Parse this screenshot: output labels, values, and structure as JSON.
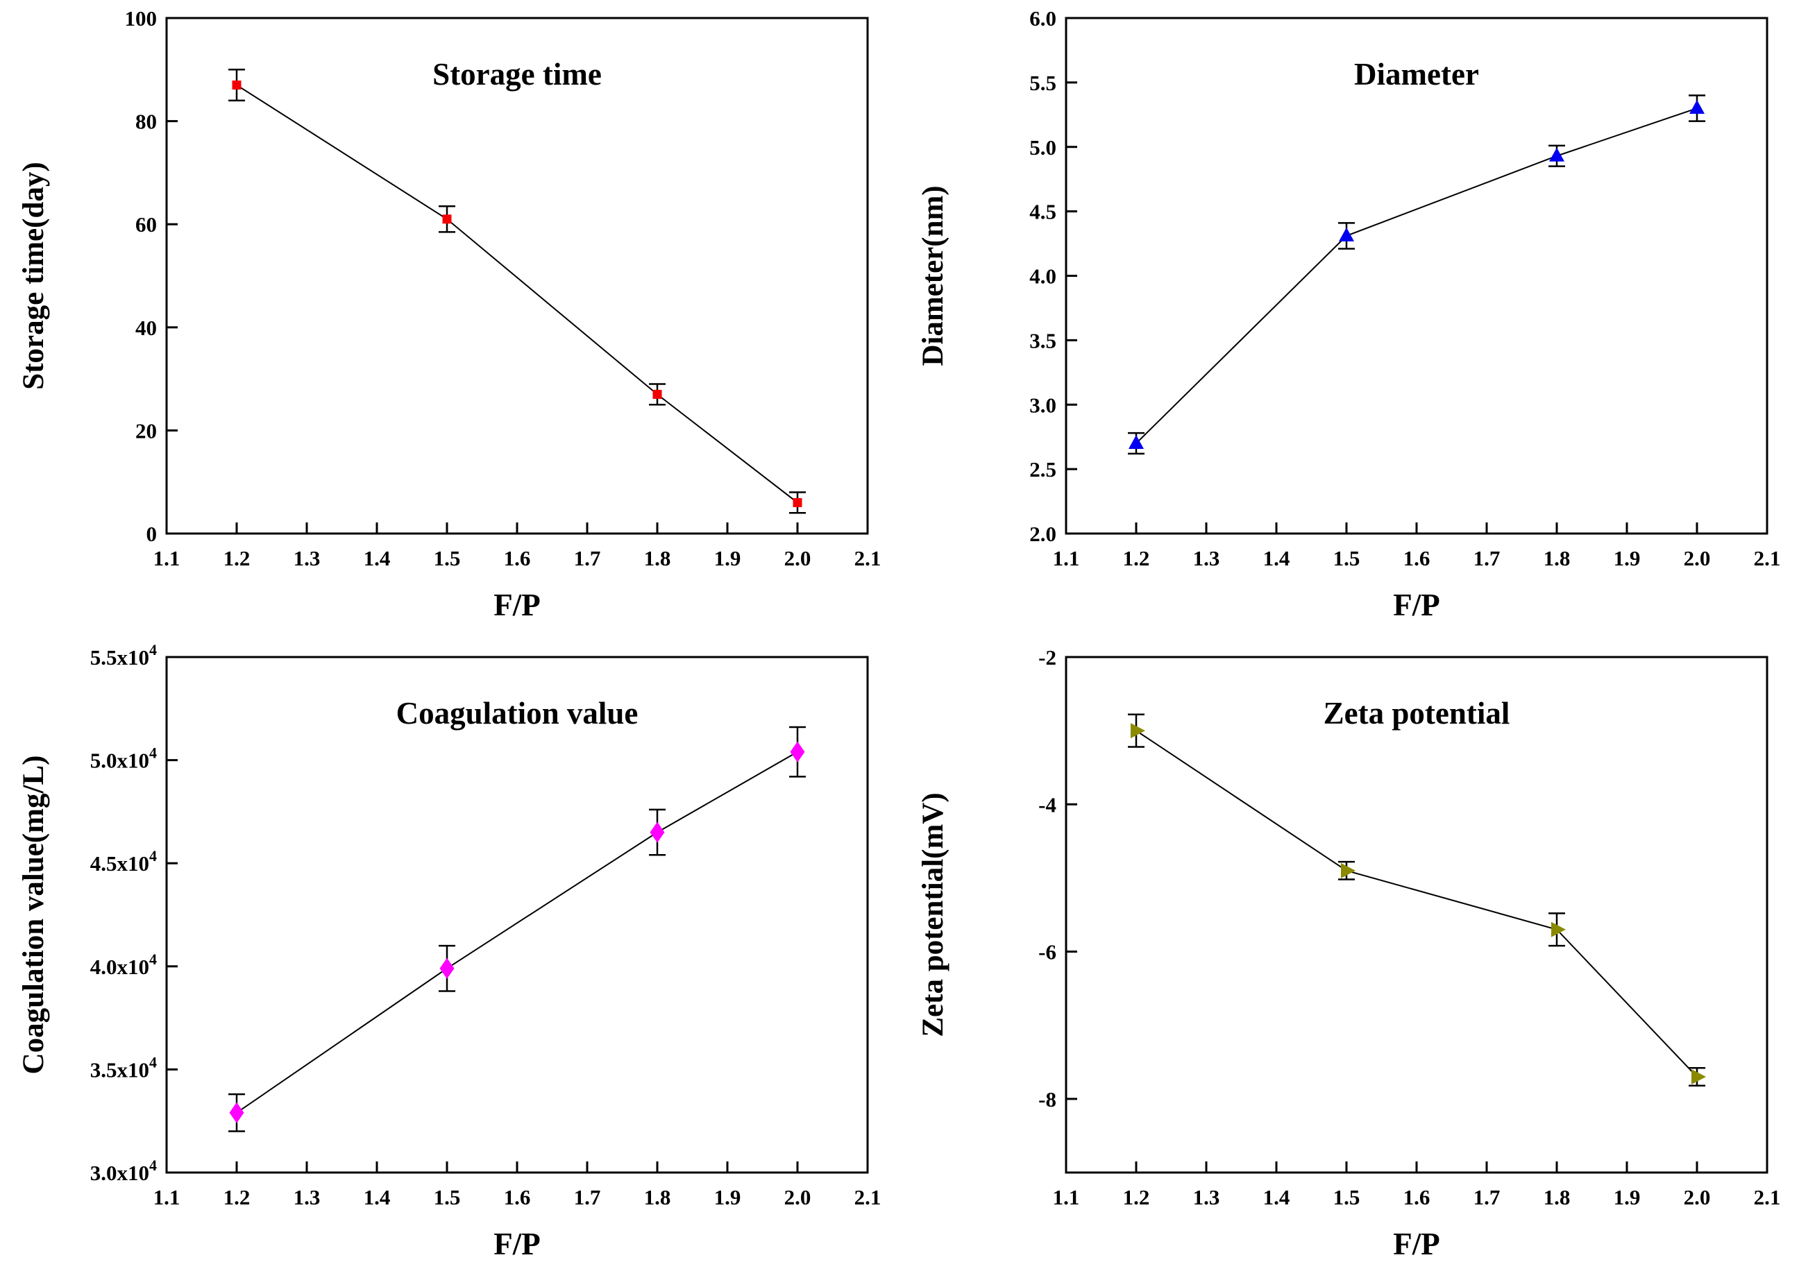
{
  "page": {
    "background": "#ffffff",
    "layout": "2x2-grid"
  },
  "chart_data": [
    {
      "id": "storage-time",
      "type": "line",
      "title": "Storage time",
      "xlabel": "F/P",
      "ylabel": "Storage time(day)",
      "xlim": [
        1.1,
        2.1
      ],
      "xticks": [
        1.1,
        1.2,
        1.3,
        1.4,
        1.5,
        1.6,
        1.7,
        1.8,
        1.9,
        2.0,
        2.1
      ],
      "xtick_labels": [
        "1.1",
        "1.2",
        "1.3",
        "1.4",
        "1.5",
        "1.6",
        "1.7",
        "1.8",
        "1.9",
        "2.0",
        "2.1"
      ],
      "ylim": [
        0,
        100
      ],
      "yticks": [
        0,
        20,
        40,
        60,
        80,
        100
      ],
      "ytick_labels": [
        "0",
        "20",
        "40",
        "60",
        "80",
        "100"
      ],
      "grid": false,
      "legend": "none",
      "marker": "square",
      "marker_color": "#f40000",
      "line_color": "#000000",
      "x": [
        1.2,
        1.5,
        1.8,
        2.0
      ],
      "y": [
        87,
        61,
        27,
        6
      ],
      "yerr": [
        3,
        2.5,
        2,
        2
      ]
    },
    {
      "id": "diameter",
      "type": "line",
      "title": "Diameter",
      "xlabel": "F/P",
      "ylabel": "Diameter(nm)",
      "xlim": [
        1.1,
        2.1
      ],
      "xticks": [
        1.1,
        1.2,
        1.3,
        1.4,
        1.5,
        1.6,
        1.7,
        1.8,
        1.9,
        2.0,
        2.1
      ],
      "xtick_labels": [
        "1.1",
        "1.2",
        "1.3",
        "1.4",
        "1.5",
        "1.6",
        "1.7",
        "1.8",
        "1.9",
        "2.0",
        "2.1"
      ],
      "ylim": [
        2.0,
        6.0
      ],
      "yticks": [
        2.0,
        2.5,
        3.0,
        3.5,
        4.0,
        4.5,
        5.0,
        5.5,
        6.0
      ],
      "ytick_labels": [
        "2.0",
        "2.5",
        "3.0",
        "3.5",
        "4.0",
        "4.5",
        "5.0",
        "5.5",
        "6.0"
      ],
      "grid": false,
      "legend": "none",
      "marker": "triangle-up",
      "marker_color": "#0000f0",
      "line_color": "#000000",
      "x": [
        1.2,
        1.5,
        1.8,
        2.0
      ],
      "y": [
        2.7,
        4.31,
        4.93,
        5.3
      ],
      "yerr": [
        0.08,
        0.1,
        0.08,
        0.1
      ]
    },
    {
      "id": "coagulation-value",
      "type": "line",
      "title": "Coagulation value",
      "xlabel": "F/P",
      "ylabel": "Coagulation value(mg/L)",
      "xlim": [
        1.1,
        2.1
      ],
      "xticks": [
        1.1,
        1.2,
        1.3,
        1.4,
        1.5,
        1.6,
        1.7,
        1.8,
        1.9,
        2.0,
        2.1
      ],
      "xtick_labels": [
        "1.1",
        "1.2",
        "1.3",
        "1.4",
        "1.5",
        "1.6",
        "1.7",
        "1.8",
        "1.9",
        "2.0",
        "2.1"
      ],
      "ylim": [
        30000,
        55000
      ],
      "yticks": [
        30000,
        35000,
        40000,
        45000,
        50000,
        55000
      ],
      "ytick_labels": [
        "3.0x10^4",
        "3.5x10^4",
        "4.0x10^4",
        "4.5x10^4",
        "5.0x10^4",
        "5.5x10^4"
      ],
      "grid": false,
      "legend": "none",
      "marker": "diamond",
      "marker_color": "#ff00ff",
      "line_color": "#000000",
      "x": [
        1.2,
        1.5,
        1.8,
        2.0
      ],
      "y": [
        32900,
        39900,
        46500,
        50400
      ],
      "yerr": [
        900,
        1100,
        1100,
        1200
      ]
    },
    {
      "id": "zeta-potential",
      "type": "line",
      "title": "Zeta potential",
      "xlabel": "F/P",
      "ylabel": "Zeta potential(mV)",
      "xlim": [
        1.1,
        2.1
      ],
      "xticks": [
        1.1,
        1.2,
        1.3,
        1.4,
        1.5,
        1.6,
        1.7,
        1.8,
        1.9,
        2.0,
        2.1
      ],
      "xtick_labels": [
        "1.1",
        "1.2",
        "1.3",
        "1.4",
        "1.5",
        "1.6",
        "1.7",
        "1.8",
        "1.9",
        "2.0",
        "2.1"
      ],
      "ylim": [
        -9,
        -2
      ],
      "yticks": [
        -8,
        -6,
        -4,
        -2
      ],
      "ytick_labels": [
        "-8",
        "-6",
        "-4",
        "-2"
      ],
      "grid": false,
      "legend": "none",
      "marker": "triangle-right",
      "marker_color": "#8a8a00",
      "line_color": "#000000",
      "x": [
        1.2,
        1.5,
        1.8,
        2.0
      ],
      "y": [
        -3.0,
        -4.9,
        -5.7,
        -7.7
      ],
      "yerr": [
        0.22,
        0.12,
        0.22,
        0.12
      ]
    }
  ]
}
